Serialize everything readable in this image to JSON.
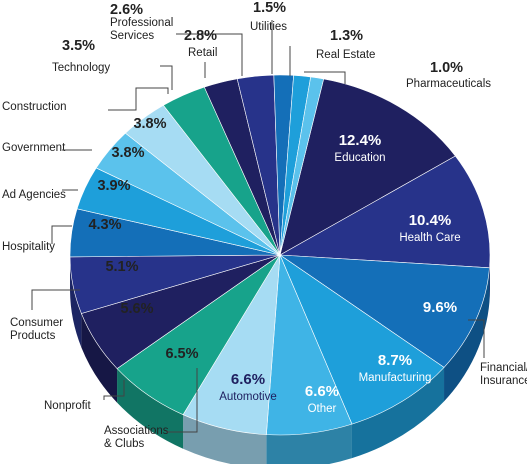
{
  "chart_data": {
    "type": "pie",
    "title": "",
    "slices": [
      {
        "label": "Education",
        "value": 12.4,
        "color": "#1F2060"
      },
      {
        "label": "Health Care",
        "value": 10.4,
        "color": "#27338A"
      },
      {
        "label": "Financial/\nInsurance",
        "value": 9.6,
        "color": "#146FB8"
      },
      {
        "label": "Manufacturing",
        "value": 8.7,
        "color": "#1E9FDA"
      },
      {
        "label": "Other",
        "value": 6.6,
        "color": "#3FB4E6"
      },
      {
        "label": "Automotive",
        "value": 6.6,
        "color": "#A6DCF3"
      },
      {
        "label": "Associations\n& Clubs",
        "value": 6.5,
        "color": "#17A38B"
      },
      {
        "label": "Nonprofit",
        "value": 5.6,
        "color": "#1F2060"
      },
      {
        "label": "Consumer\nProducts",
        "value": 5.1,
        "color": "#27338A"
      },
      {
        "label": "Hospitality",
        "value": 4.3,
        "color": "#146FB8"
      },
      {
        "label": "Ad Agencies",
        "value": 3.9,
        "color": "#1E9FDA"
      },
      {
        "label": "Government",
        "value": 3.8,
        "color": "#5BC2EC"
      },
      {
        "label": "Construction",
        "value": 3.8,
        "color": "#A6DCF3"
      },
      {
        "label": "Technology",
        "value": 3.5,
        "color": "#17A38B"
      },
      {
        "label": "Professional\nServices",
        "value": 2.6,
        "color": "#1F2060"
      },
      {
        "label": "Retail",
        "value": 2.8,
        "color": "#27338A"
      },
      {
        "label": "Utilities",
        "value": 1.5,
        "color": "#146FB8"
      },
      {
        "label": "Real Estate",
        "value": 1.3,
        "color": "#1E9FDA"
      },
      {
        "label": "Pharmaceuticals",
        "value": 1.0,
        "color": "#5BC2EC"
      }
    ]
  }
}
